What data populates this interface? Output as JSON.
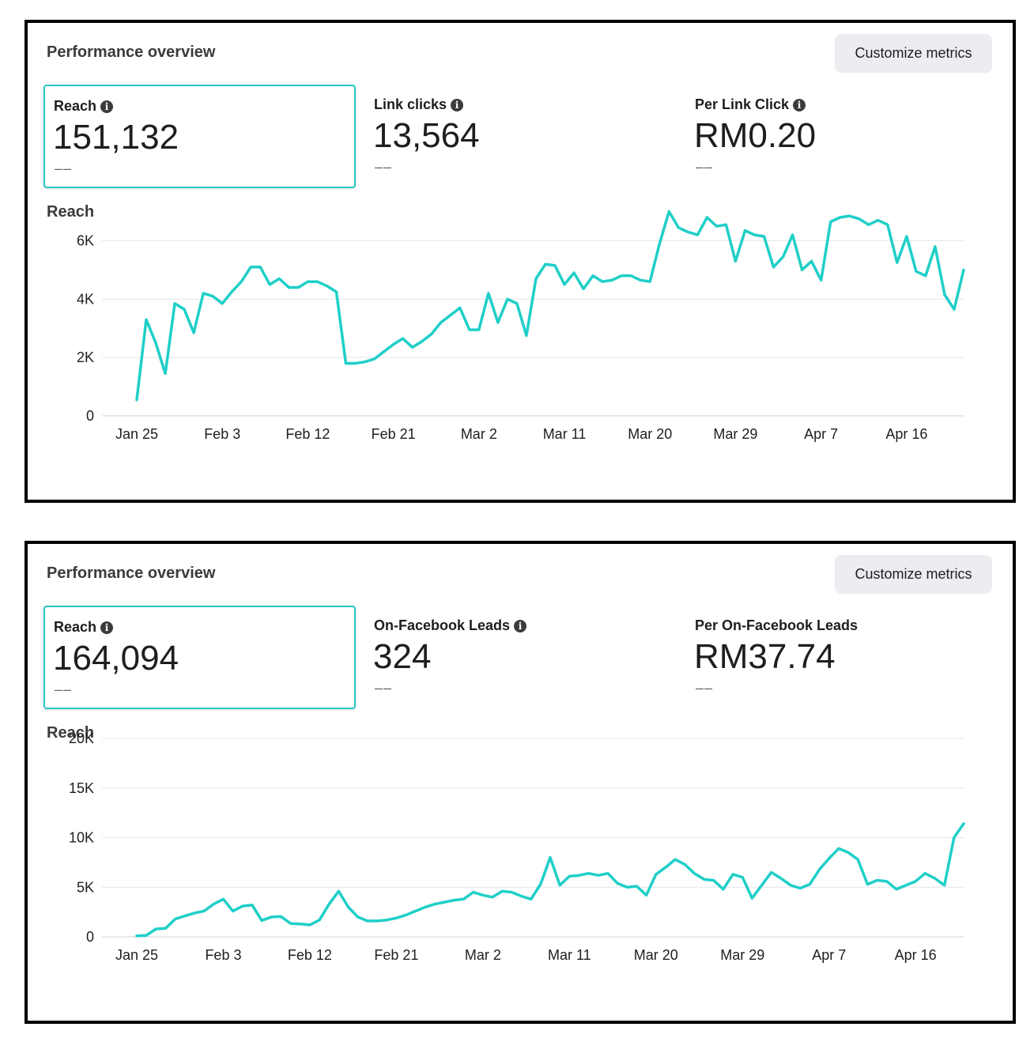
{
  "panels": [
    {
      "title": "Performance overview",
      "customize_label": "Customize metrics",
      "metrics": [
        {
          "label": "Reach",
          "value": "151,132",
          "delta": "––",
          "info": true
        },
        {
          "label": "Link clicks",
          "value": "13,564",
          "delta": "––",
          "info": true
        },
        {
          "label": "Per Link Click",
          "value": "RM0.20",
          "delta": "––",
          "info": true
        }
      ],
      "chart_title": "Reach"
    },
    {
      "title": "Performance overview",
      "customize_label": "Customize metrics",
      "metrics": [
        {
          "label": "Reach",
          "value": "164,094",
          "delta": "––",
          "info": true
        },
        {
          "label": "On-Facebook Leads",
          "value": "324",
          "delta": "––",
          "info": true
        },
        {
          "label": "Per On-Facebook Leads",
          "value": "RM37.74",
          "delta": "––",
          "info": false
        }
      ],
      "chart_title": "Reach"
    }
  ],
  "chart_data": [
    {
      "type": "line",
      "title": "Reach",
      "color": "#1fcfc8",
      "x_tick_labels": [
        "Jan 25",
        "Feb 3",
        "Feb 12",
        "Feb 21",
        "Mar 2",
        "Mar 11",
        "Mar 20",
        "Mar 29",
        "Apr 7",
        "Apr 16"
      ],
      "y_tick_labels": [
        "0",
        "2K",
        "4K",
        "6K"
      ],
      "y_ticks": [
        0,
        2000,
        4000,
        6000
      ],
      "ylim": [
        0,
        6800
      ],
      "x_start": "Jan 25",
      "x_end": "Apr 20",
      "values": [
        550,
        3300,
        2500,
        1450,
        3850,
        3650,
        2850,
        4200,
        4100,
        3850,
        4250,
        4600,
        5100,
        5100,
        4500,
        4700,
        4400,
        4400,
        4600,
        4600,
        4450,
        4250,
        1800,
        1800,
        1850,
        1950,
        2200,
        2450,
        2650,
        2350,
        2550,
        2800,
        3200,
        3450,
        3700,
        2950,
        2950,
        4200,
        3200,
        4000,
        3850,
        2750,
        4700,
        5200,
        5150,
        4500,
        4900,
        4350,
        4800,
        4600,
        4650,
        4800,
        4800,
        4650,
        4600,
        5900,
        7000,
        6450,
        6300,
        6200,
        6800,
        6500,
        6550,
        5300,
        6350,
        6200,
        6150,
        5100,
        5450,
        6200,
        5000,
        5300,
        4650,
        6650,
        6800,
        6850,
        6750,
        6550,
        6700,
        6550,
        5250,
        6150,
        4950,
        4800,
        5800,
        4150,
        3650,
        5000
      ]
    },
    {
      "type": "line",
      "title": "Reach",
      "color": "#1fcfc8",
      "x_tick_labels": [
        "Jan 25",
        "Feb 3",
        "Feb 12",
        "Feb 21",
        "Mar 2",
        "Mar 11",
        "Mar 20",
        "Mar 29",
        "Apr 7",
        "Apr 16"
      ],
      "y_tick_labels": [
        "0",
        "5K",
        "10K",
        "15K",
        "20K"
      ],
      "y_ticks": [
        0,
        5000,
        10000,
        15000,
        20000
      ],
      "ylim": [
        0,
        20000
      ],
      "x_start": "Jan 25",
      "x_end": "Apr 20",
      "values": [
        100,
        150,
        800,
        850,
        1800,
        2100,
        2400,
        2600,
        3300,
        3800,
        2600,
        3100,
        3200,
        1650,
        2000,
        2050,
        1350,
        1300,
        1200,
        1700,
        3300,
        4600,
        3000,
        2000,
        1600,
        1600,
        1700,
        1900,
        2200,
        2600,
        3000,
        3300,
        3500,
        3700,
        3800,
        4500,
        4200,
        4000,
        4600,
        4500,
        4100,
        3800,
        5300,
        8000,
        5200,
        6100,
        6200,
        6400,
        6200,
        6400,
        5400,
        5000,
        5100,
        4200,
        6300,
        7000,
        7800,
        7300,
        6400,
        5800,
        5700,
        4800,
        6300,
        6000,
        3900,
        5200,
        6500,
        5900,
        5200,
        4900,
        5300,
        6800,
        7900,
        8900,
        8500,
        7800,
        5300,
        5700,
        5600,
        4800,
        5200,
        5600,
        6400,
        5900,
        5200,
        10000,
        11400
      ]
    }
  ]
}
